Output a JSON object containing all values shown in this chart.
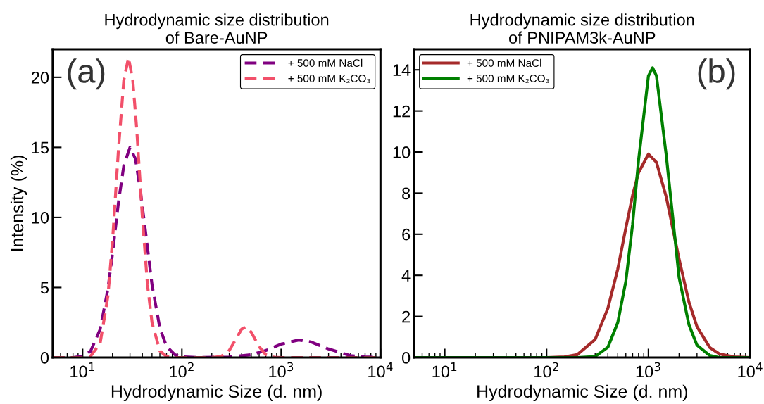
{
  "chart_data": [
    {
      "type": "line",
      "title": "Hydrodynamic size distribution\nof Bare-AuNP",
      "xlabel": "Hydrodynamic Size (d. nm)",
      "ylabel": "Intensity (%)",
      "log": "x",
      "line_style": "dashed",
      "marker": "none",
      "legend": "top right",
      "grid": false,
      "annotations": [
        "(a)"
      ],
      "xlim": [
        5,
        10000
      ],
      "xticks": [
        {
          "value": 10,
          "label": "10$^{1}$"
        },
        {
          "value": 100,
          "label": "10$^{2}$"
        },
        {
          "value": 1000,
          "label": "10$^{3}$"
        },
        {
          "value": 10000,
          "label": "10$^{4}$"
        }
      ],
      "ylim": [
        0,
        22
      ],
      "yticks": [
        0,
        5,
        10,
        15,
        20
      ],
      "series": [
        {
          "name": "+ 500 mM NaCl",
          "color": "#800080",
          "x": [
            5,
            8,
            10,
            12,
            15,
            18,
            20,
            23,
            26,
            30,
            34,
            38,
            43,
            50,
            60,
            70,
            85,
            100,
            150,
            300,
            500,
            700,
            1000,
            1500,
            2000,
            3000,
            5000,
            7000,
            10000
          ],
          "values": [
            0,
            0.0,
            0.1,
            0.44,
            2.0,
            4.9,
            7.4,
            11.1,
            13.7,
            15.0,
            14.2,
            12.0,
            9.0,
            5.2,
            2.1,
            0.8,
            0.2,
            0.05,
            0,
            0.03,
            0.2,
            0.5,
            0.96,
            1.25,
            1.11,
            0.61,
            0.14,
            0.04,
            0
          ]
        },
        {
          "name": "+ 500 mM K₂CO₃",
          "color": "#f2506a",
          "x": [
            5,
            10,
            12,
            15,
            18,
            20,
            23,
            26,
            29,
            32,
            35,
            40,
            45,
            50,
            60,
            70,
            85,
            200,
            250,
            300,
            350,
            400,
            440,
            500,
            600,
            700,
            850,
            1000,
            10000
          ],
          "values": [
            0,
            0,
            0.09,
            1.0,
            4.4,
            8.3,
            14.9,
            19.8,
            21.4,
            19.8,
            16.4,
            10.0,
            5.2,
            2.5,
            0.47,
            0.08,
            0,
            0,
            0.09,
            0.51,
            1.32,
            2.03,
            2.2,
            1.81,
            0.77,
            0.21,
            0.02,
            0,
            0
          ]
        }
      ]
    },
    {
      "type": "line",
      "title": "Hydrodynamic size distribution\nof PNIPAM3k-AuNP",
      "xlabel": "Hydrodynamic Size (d. nm)",
      "log": "x",
      "line_style": "solid",
      "marker": "none",
      "legend": "top left",
      "grid": false,
      "annotations": [
        "(b)"
      ],
      "xlim": [
        5,
        10000
      ],
      "xticks": [
        {
          "value": 10,
          "label": "10$^{1}$"
        },
        {
          "value": 100,
          "label": "10$^{2}$"
        },
        {
          "value": 1000,
          "label": "10$^{3}$"
        },
        {
          "value": 10000,
          "label": "10$^{4}$"
        }
      ],
      "ylim": [
        0,
        15
      ],
      "yticks": [
        0,
        2,
        4,
        6,
        8,
        10,
        12,
        14
      ],
      "series": [
        {
          "name": "+ 500 mM NaCl",
          "color": "#a52a2a",
          "x": [
            5,
            100,
            150,
            200,
            300,
            400,
            500,
            600,
            700,
            800,
            1000,
            1200,
            1500,
            2000,
            2500,
            3000,
            4000,
            5000,
            7000,
            10000
          ],
          "values": [
            0,
            0,
            0.03,
            0.14,
            0.88,
            2.4,
            4.3,
            6.3,
            7.9,
            9.0,
            9.9,
            9.5,
            7.8,
            4.8,
            2.7,
            1.5,
            0.49,
            0.17,
            0.03,
            0
          ]
        },
        {
          "name": "+ 500 mM K₂CO₃",
          "color": "#008000",
          "x": [
            5,
            200,
            300,
            400,
            500,
            600,
            700,
            800,
            1000,
            1100,
            1200,
            1500,
            2000,
            2500,
            3000,
            4000,
            5000,
            10000
          ],
          "values": [
            0,
            0,
            0.05,
            0.5,
            1.7,
            3.7,
            6.5,
            9.6,
            13.7,
            14.1,
            13.7,
            9.8,
            3.9,
            1.6,
            0.6,
            0.1,
            0,
            0
          ]
        }
      ]
    }
  ]
}
